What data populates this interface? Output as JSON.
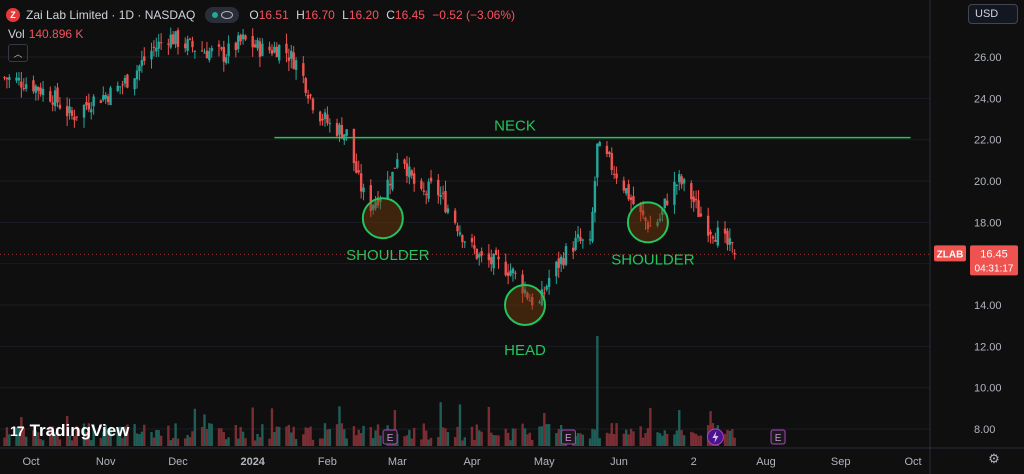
{
  "legend": {
    "logo_letter": "Z",
    "symbol": "Zai Lab Limited · 1D · NASDAQ",
    "open_key": "O",
    "open": "16.51",
    "high_key": "H",
    "high": "16.70",
    "low_key": "L",
    "low": "16.20",
    "close_key": "C",
    "close": "16.45",
    "change": "−0.52 (−3.06%)",
    "vol_key": "Vol",
    "vol": "140.896 K"
  },
  "currency_button": "USD",
  "brand": {
    "mark": "17",
    "name": "TradingView"
  },
  "colors": {
    "up": "#26a69a",
    "down": "#ef5350",
    "annotation": "#22c55e",
    "background": "#0f0f0f",
    "price_tag": "#ef5350"
  },
  "chart_data": {
    "type": "candlestick",
    "title": "Zai Lab Limited · 1D · NASDAQ",
    "y_axis_ticks": [
      26,
      24,
      22,
      20,
      18,
      16,
      14,
      12,
      10,
      8
    ],
    "y_axis_tick_labels": [
      "26.00",
      "24.00",
      "22.00",
      "20.00",
      "18.00",
      "16.00",
      "14.00",
      "12.00",
      "10.00",
      "8.00"
    ],
    "ylim": [
      7.4,
      27.9
    ],
    "x_axis_labels": [
      "Oct",
      "Nov",
      "Dec",
      "2024",
      "Feb",
      "Mar",
      "Apr",
      "May",
      "Jun",
      "2",
      "Aug",
      "Sep",
      "Oct"
    ],
    "x_axis_label_dates": [
      "2023-10-01",
      "2023-11-01",
      "2023-12-01",
      "2024-01-01",
      "2024-02-01",
      "2024-03-01",
      "2024-04-01",
      "2024-05-01",
      "2024-06-01",
      "2024-07-02",
      "2024-08-01",
      "2024-09-01",
      "2024-10-01"
    ],
    "last_price": {
      "symbol": "ZLAB",
      "value": 16.45,
      "label": "16.45",
      "countdown": "04:31:17"
    },
    "price_path": [
      {
        "date": "2023-09-20",
        "close": 25.0
      },
      {
        "date": "2023-10-01",
        "close": 24.7
      },
      {
        "date": "2023-10-10",
        "close": 24.1
      },
      {
        "date": "2023-10-18",
        "close": 23.1
      },
      {
        "date": "2023-10-26",
        "close": 23.9
      },
      {
        "date": "2023-11-04",
        "close": 24.3
      },
      {
        "date": "2023-11-12",
        "close": 25.1
      },
      {
        "date": "2023-11-20",
        "close": 26.3
      },
      {
        "date": "2023-11-27",
        "close": 27.0
      },
      {
        "date": "2023-12-04",
        "close": 26.6
      },
      {
        "date": "2023-12-12",
        "close": 26.3
      },
      {
        "date": "2023-12-20",
        "close": 26.1
      },
      {
        "date": "2023-12-28",
        "close": 26.8
      },
      {
        "date": "2024-01-06",
        "close": 26.3
      },
      {
        "date": "2024-01-13",
        "close": 26.5
      },
      {
        "date": "2024-01-20",
        "close": 25.6
      },
      {
        "date": "2024-01-27",
        "close": 23.5
      },
      {
        "date": "2024-02-02",
        "close": 22.7
      },
      {
        "date": "2024-02-09",
        "close": 22.3
      },
      {
        "date": "2024-02-14",
        "close": 20.0
      },
      {
        "date": "2024-02-18",
        "close": 18.7
      },
      {
        "date": "2024-02-23",
        "close": 19.4
      },
      {
        "date": "2024-02-28",
        "close": 20.3
      },
      {
        "date": "2024-03-02",
        "close": 21.8
      },
      {
        "date": "2024-03-06",
        "close": 20.3
      },
      {
        "date": "2024-03-11",
        "close": 19.2
      },
      {
        "date": "2024-03-16",
        "close": 19.8
      },
      {
        "date": "2024-03-20",
        "close": 19.1
      },
      {
        "date": "2024-03-25",
        "close": 18.1
      },
      {
        "date": "2024-03-30",
        "close": 17.0
      },
      {
        "date": "2024-04-05",
        "close": 16.2
      },
      {
        "date": "2024-04-11",
        "close": 16.0
      },
      {
        "date": "2024-04-17",
        "close": 15.7
      },
      {
        "date": "2024-04-21",
        "close": 15.1
      },
      {
        "date": "2024-04-25",
        "close": 14.3
      },
      {
        "date": "2024-04-29",
        "close": 14.0
      },
      {
        "date": "2024-05-03",
        "close": 15.3
      },
      {
        "date": "2024-05-07",
        "close": 16.0
      },
      {
        "date": "2024-05-11",
        "close": 16.7
      },
      {
        "date": "2024-05-15",
        "close": 17.1
      },
      {
        "date": "2024-05-20",
        "close": 16.8
      },
      {
        "date": "2024-05-23",
        "close": 21.6
      },
      {
        "date": "2024-05-28",
        "close": 20.9
      },
      {
        "date": "2024-06-02",
        "close": 20.0
      },
      {
        "date": "2024-06-06",
        "close": 19.1
      },
      {
        "date": "2024-06-10",
        "close": 18.3
      },
      {
        "date": "2024-06-14",
        "close": 17.8
      },
      {
        "date": "2024-06-18",
        "close": 18.2
      },
      {
        "date": "2024-06-22",
        "close": 19.5
      },
      {
        "date": "2024-06-26",
        "close": 20.0
      },
      {
        "date": "2024-06-30",
        "close": 19.5
      },
      {
        "date": "2024-07-04",
        "close": 18.5
      },
      {
        "date": "2024-07-08",
        "close": 17.8
      },
      {
        "date": "2024-07-12",
        "close": 17.4
      },
      {
        "date": "2024-07-16",
        "close": 16.9
      },
      {
        "date": "2024-07-20",
        "close": 16.45
      }
    ],
    "volume_spike": {
      "date": "2024-05-23",
      "fraction_of_max": 1.0
    },
    "annotations": {
      "neck_line": {
        "label": "NECK",
        "value": 22.1,
        "from": "2024-01-10",
        "to": "2024-09-30"
      },
      "circles": [
        {
          "label": "SHOULDER",
          "date": "2024-02-24",
          "value": 18.2
        },
        {
          "label": "HEAD",
          "date": "2024-04-23",
          "value": 14.0
        },
        {
          "label": "SHOULDER",
          "date": "2024-06-13",
          "value": 18.0
        }
      ]
    },
    "event_markers": [
      {
        "label": "E",
        "date": "2024-02-27"
      },
      {
        "label": "E",
        "date": "2024-05-11"
      },
      {
        "label": "E",
        "date": "2024-08-06"
      }
    ],
    "dividend_marker": {
      "date": "2024-07-11"
    }
  }
}
